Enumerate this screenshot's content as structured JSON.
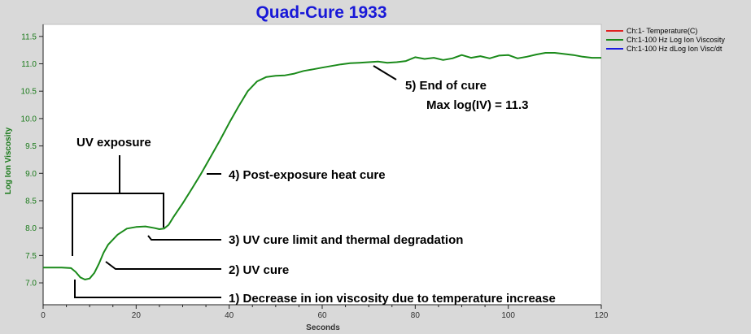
{
  "chart_data": {
    "type": "line",
    "title": "Quad-Cure 1933",
    "xlabel": "Seconds",
    "ylabel": "Log Ion Viscosity",
    "xlim": [
      0,
      120
    ],
    "ylim": [
      6.6,
      11.72
    ],
    "xticks": [
      "0",
      "20",
      "40",
      "60",
      "80",
      "100",
      "120"
    ],
    "yticks": [
      "7.0",
      "7.5",
      "8.0",
      "8.5",
      "9.0",
      "9.5",
      "10.0",
      "10.5",
      "11.0",
      "11.5"
    ],
    "grid": false,
    "legend_position": "top-right",
    "colors": {
      "background": "#d9d9d9",
      "plot_bg": "#ffffff",
      "title": "#1818d8",
      "y_axis_text": "#1a7a1a",
      "annotation": "#000000"
    },
    "series": [
      {
        "name": "Ch:1- Temperature(C)",
        "color": "#e02020",
        "x": [],
        "y": []
      },
      {
        "name": "Ch:1-100 Hz Log Ion Viscosity",
        "color": "#1a8a1a",
        "x": [
          0,
          4,
          6,
          7,
          8,
          9,
          10,
          11,
          12,
          13,
          14,
          16,
          18,
          20,
          22,
          24,
          25,
          26,
          27,
          28,
          30,
          32,
          34,
          36,
          38,
          40,
          42,
          44,
          46,
          48,
          50,
          52,
          54,
          56,
          58,
          60,
          62,
          64,
          66,
          68,
          70,
          72,
          74,
          76,
          78,
          80,
          82,
          84,
          86,
          88,
          90,
          92,
          94,
          96,
          98,
          100,
          102,
          104,
          106,
          108,
          110,
          112,
          114,
          116,
          118,
          120
        ],
        "y": [
          7.28,
          7.28,
          7.27,
          7.2,
          7.1,
          7.06,
          7.08,
          7.18,
          7.35,
          7.55,
          7.7,
          7.88,
          7.99,
          8.02,
          8.03,
          8.0,
          7.98,
          7.99,
          8.06,
          8.2,
          8.45,
          8.72,
          9.0,
          9.3,
          9.6,
          9.92,
          10.22,
          10.5,
          10.68,
          10.76,
          10.78,
          10.79,
          10.82,
          10.87,
          10.9,
          10.93,
          10.96,
          10.99,
          11.01,
          11.02,
          11.03,
          11.04,
          11.02,
          11.03,
          11.05,
          11.12,
          11.09,
          11.11,
          11.07,
          11.1,
          11.16,
          11.11,
          11.14,
          11.1,
          11.15,
          11.16,
          11.1,
          11.13,
          11.17,
          11.2,
          11.2,
          11.18,
          11.16,
          11.13,
          11.11,
          11.11
        ]
      },
      {
        "name": "Ch:1-100 Hz dLog Ion Visc/dt",
        "color": "#1a1ae0",
        "x": [],
        "y": []
      }
    ],
    "annotations": [
      {
        "id": "uv-exposure",
        "lines": [
          "UV exposure"
        ]
      },
      {
        "id": "decrease",
        "lines": [
          "1) Decrease in ion viscosity due to temperature increase"
        ]
      },
      {
        "id": "uv-cure",
        "lines": [
          "2) UV cure"
        ]
      },
      {
        "id": "uv-limit",
        "lines": [
          "3) UV cure limit and thermal degradation"
        ]
      },
      {
        "id": "post-exposure",
        "lines": [
          "4) Post-exposure heat cure"
        ]
      },
      {
        "id": "end-of-cure",
        "lines": [
          "5) End of cure",
          "Max log(IV) = 11.3"
        ]
      }
    ]
  }
}
